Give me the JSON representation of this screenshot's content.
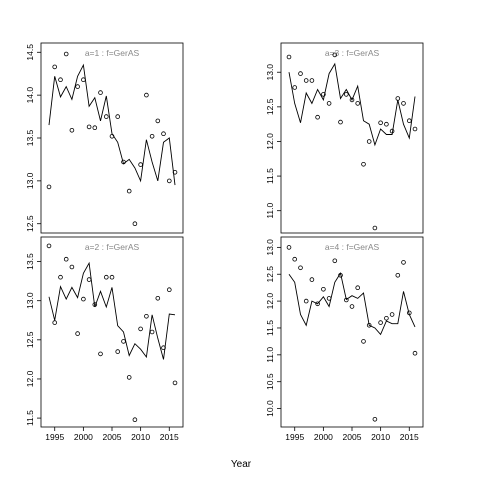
{
  "figure": {
    "xlabel": "Year",
    "line_color": "#000000",
    "point_color": "#000000",
    "panel_label_color": "#888888"
  },
  "chart_data": [
    {
      "type": "line",
      "panel": "a=1",
      "label": "a=1  :  f=GerAS",
      "x_ticks": [
        1995,
        2000,
        2005,
        2010,
        2015
      ],
      "y_ticks": [
        "12.5",
        "13.0",
        "13.5",
        "14.0",
        "14.5"
      ],
      "xlim": [
        1994,
        2016
      ],
      "ylim": [
        12.45,
        14.55
      ],
      "series": [
        {
          "kind": "line",
          "x": [
            1994,
            1995,
            1996,
            1997,
            1998,
            1999,
            2000,
            2001,
            2002,
            2003,
            2004,
            2005,
            2006,
            2007,
            2008,
            2009,
            2010,
            2011,
            2012,
            2013,
            2014,
            2015,
            2016
          ],
          "y": [
            13.65,
            14.22,
            13.98,
            14.1,
            13.95,
            14.22,
            14.35,
            13.87,
            13.97,
            13.7,
            13.99,
            13.55,
            13.45,
            13.2,
            13.25,
            13.15,
            13.0,
            13.48,
            13.22,
            13.0,
            13.45,
            13.5,
            12.95
          ]
        },
        {
          "kind": "scatter",
          "x": [
            1994,
            1995,
            1996,
            1997,
            1998,
            1999,
            2000,
            2001,
            2002,
            2003,
            2004,
            2005,
            2006,
            2007,
            2008,
            2009,
            2010,
            2011,
            2012,
            2013,
            2014,
            2015,
            2016
          ],
          "y": [
            12.93,
            14.33,
            14.18,
            14.48,
            13.59,
            14.1,
            14.18,
            13.63,
            13.62,
            14.03,
            13.75,
            13.52,
            13.75,
            13.22,
            12.88,
            12.5,
            13.19,
            14.0,
            13.52,
            13.7,
            13.55,
            13.0,
            13.1
          ]
        }
      ]
    },
    {
      "type": "line",
      "panel": "a=3",
      "label": "a=3  :  f=GerAS",
      "x_ticks": [
        1995,
        2000,
        2005,
        2010,
        2015
      ],
      "y_ticks": [
        "11.0",
        "11.5",
        "12.0",
        "12.5",
        "13.0"
      ],
      "xlim": [
        1994,
        2016
      ],
      "ylim": [
        10.75,
        13.35
      ],
      "series": [
        {
          "kind": "line",
          "x": [
            1994,
            1995,
            1996,
            1997,
            1998,
            1999,
            2000,
            2001,
            2002,
            2003,
            2004,
            2005,
            2006,
            2007,
            2008,
            2009,
            2010,
            2011,
            2012,
            2013,
            2014,
            2015,
            2016
          ],
          "y": [
            13.0,
            12.55,
            12.27,
            12.7,
            12.55,
            12.75,
            12.6,
            12.98,
            13.12,
            12.62,
            12.75,
            12.6,
            12.8,
            12.3,
            12.25,
            11.95,
            12.18,
            12.1,
            12.1,
            12.6,
            12.25,
            12.05,
            12.65
          ]
        },
        {
          "kind": "scatter",
          "x": [
            1994,
            1995,
            1996,
            1997,
            1998,
            1999,
            2000,
            2001,
            2002,
            2003,
            2004,
            2005,
            2006,
            2007,
            2008,
            2009,
            2010,
            2011,
            2012,
            2013,
            2014,
            2015,
            2016
          ],
          "y": [
            13.22,
            12.78,
            12.98,
            12.88,
            12.88,
            12.35,
            12.68,
            12.55,
            13.25,
            12.28,
            12.68,
            12.6,
            12.55,
            11.67,
            12.0,
            10.75,
            12.27,
            12.25,
            12.15,
            12.62,
            12.55,
            12.3,
            12.18
          ]
        }
      ]
    },
    {
      "type": "line",
      "panel": "a=2",
      "label": "a=2  :  f=GerAS",
      "x_ticks": [
        1995,
        2000,
        2005,
        2010,
        2015
      ],
      "y_ticks": [
        "11.5",
        "12.0",
        "12.5",
        "13.0",
        "13.5"
      ],
      "xlim": [
        1994,
        2016
      ],
      "ylim": [
        11.45,
        13.75
      ],
      "series": [
        {
          "kind": "line",
          "x": [
            1994,
            1995,
            1996,
            1997,
            1998,
            1999,
            2000,
            2001,
            2002,
            2003,
            2004,
            2005,
            2006,
            2007,
            2008,
            2009,
            2010,
            2011,
            2012,
            2013,
            2014,
            2015,
            2016
          ],
          "y": [
            13.05,
            12.75,
            13.18,
            13.02,
            13.17,
            13.04,
            13.35,
            13.48,
            12.92,
            13.12,
            12.92,
            13.17,
            12.68,
            12.6,
            12.3,
            12.45,
            12.38,
            12.28,
            12.82,
            12.52,
            12.25,
            12.83,
            12.82
          ]
        },
        {
          "kind": "scatter",
          "x": [
            1994,
            1995,
            1996,
            1997,
            1998,
            1999,
            2000,
            2001,
            2002,
            2003,
            2004,
            2005,
            2006,
            2007,
            2008,
            2009,
            2010,
            2011,
            2012,
            2013,
            2014,
            2015,
            2016
          ],
          "y": [
            13.7,
            12.72,
            13.3,
            13.53,
            13.43,
            12.58,
            13.02,
            13.27,
            12.95,
            12.32,
            13.3,
            13.3,
            12.35,
            12.48,
            12.02,
            11.48,
            12.64,
            12.8,
            12.6,
            13.03,
            12.4,
            13.14,
            11.95
          ]
        }
      ]
    },
    {
      "type": "line",
      "panel": "a=4",
      "label": "a=4  :  f=GerAS",
      "x_ticks": [
        1995,
        2000,
        2005,
        2010,
        2015
      ],
      "y_ticks": [
        "10.0",
        "10.5",
        "11.0",
        "11.5",
        "12.0",
        "12.5",
        "13.0"
      ],
      "xlim": [
        1994,
        2016
      ],
      "ylim": [
        9.75,
        13.1
      ],
      "series": [
        {
          "kind": "line",
          "x": [
            1994,
            1995,
            1996,
            1997,
            1998,
            1999,
            2000,
            2001,
            2002,
            2003,
            2004,
            2005,
            2006,
            2007,
            2008,
            2009,
            2010,
            2011,
            2012,
            2013,
            2014,
            2015,
            2016
          ],
          "y": [
            12.5,
            12.35,
            11.75,
            11.55,
            12.0,
            11.95,
            12.08,
            11.9,
            12.35,
            12.52,
            12.03,
            12.1,
            12.05,
            12.15,
            11.55,
            11.5,
            11.38,
            11.63,
            11.58,
            11.58,
            12.18,
            11.75,
            11.52
          ]
        },
        {
          "kind": "scatter",
          "x": [
            1994,
            1995,
            1996,
            1997,
            1998,
            1999,
            2000,
            2001,
            2002,
            2003,
            2004,
            2005,
            2006,
            2007,
            2008,
            2009,
            2010,
            2011,
            2012,
            2013,
            2014,
            2015,
            2016
          ],
          "y": [
            13.0,
            12.78,
            12.62,
            12.0,
            12.4,
            11.95,
            12.22,
            12.05,
            12.75,
            12.48,
            12.02,
            11.9,
            12.25,
            11.25,
            11.55,
            9.8,
            11.6,
            11.68,
            11.75,
            12.48,
            12.72,
            11.78,
            11.03
          ]
        }
      ]
    }
  ]
}
